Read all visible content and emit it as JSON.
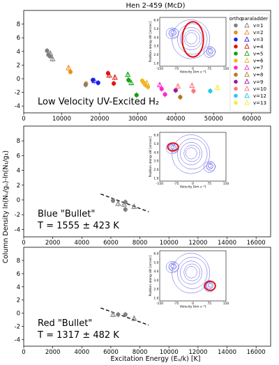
{
  "title": "Hen 2-459 (McD)",
  "ylabel": "Column Density   ln(Nᵤ/gᵤ)-ln(N₁/g₁)",
  "xlabel": "Excitation Energy     (Eᵤ/k)       [K]",
  "inset": {
    "xlabel": "Velocity [km s⁻¹]",
    "ylabel": "Position along slit [arcsec]",
    "xticks": [
      "-150",
      "-75",
      "0",
      "75",
      "150"
    ],
    "yticks": [
      "6.0",
      "5.0",
      "4.0",
      "3.0",
      "2.0",
      "1.0"
    ]
  },
  "legend": {
    "headers": [
      "ortho",
      "para",
      "ladder"
    ],
    "labels": [
      "v=1",
      "v=2",
      "v=3",
      "v=4",
      "v=5",
      "v=6",
      "v=7",
      "v=8",
      "v=9",
      "v=10",
      "v=12",
      "v=13"
    ],
    "colors": [
      "#808080",
      "#f08c1e",
      "#1e1ef0",
      "#e01414",
      "#14a014",
      "#f0b428",
      "#ff28c8",
      "#b4781e",
      "#a014a0",
      "#ff7878",
      "#28c8f0",
      "#f0f032"
    ]
  },
  "chart_data": [
    {
      "type": "scatter",
      "panel_label_lines": [
        "Low Velocity UV-Excited H₂"
      ],
      "xlim": [
        0,
        65000
      ],
      "ylim": [
        -5,
        10
      ],
      "xticks": [
        0,
        10000,
        20000,
        30000,
        40000,
        50000,
        60000
      ],
      "yticks": [
        -4,
        -2,
        0,
        2,
        4,
        6,
        8
      ],
      "inset_region": "center",
      "points": [
        {
          "v": 1,
          "t": "o",
          "x": 6150,
          "y": 4.1
        },
        {
          "v": 1,
          "t": "o",
          "x": 6500,
          "y": 3.5
        },
        {
          "v": 1,
          "t": "o",
          "x": 6900,
          "y": 3.3
        },
        {
          "v": 1,
          "t": "p",
          "x": 7000,
          "y": 3.7
        },
        {
          "v": 1,
          "t": "p",
          "x": 7600,
          "y": 2.9
        },
        {
          "v": 2,
          "t": "p",
          "x": 11800,
          "y": 1.6
        },
        {
          "v": 2,
          "t": "o",
          "x": 12300,
          "y": 1.0
        },
        {
          "v": 2,
          "t": "o",
          "x": 16400,
          "y": -0.7
        },
        {
          "v": 1,
          "t": "o",
          "x": 16300,
          "y": -0.9
        },
        {
          "v": 3,
          "t": "o",
          "x": 18200,
          "y": -0.2
        },
        {
          "v": 3,
          "t": "p",
          "x": 18600,
          "y": -0.3
        },
        {
          "v": 3,
          "t": "o",
          "x": 19600,
          "y": -0.6
        },
        {
          "v": 4,
          "t": "o",
          "x": 22200,
          "y": 0.8
        },
        {
          "v": 4,
          "t": "p",
          "x": 22500,
          "y": 0.5
        },
        {
          "v": 4,
          "t": "o",
          "x": 23700,
          "y": -0.7
        },
        {
          "v": 4,
          "t": "p",
          "x": 24000,
          "y": 0.2
        },
        {
          "v": 5,
          "t": "p",
          "x": 27400,
          "y": 0.6
        },
        {
          "v": 5,
          "t": "o",
          "x": 27600,
          "y": -0.2
        },
        {
          "v": 5,
          "t": "o",
          "x": 29700,
          "y": -2.4
        },
        {
          "v": 5,
          "t": "p",
          "x": 28300,
          "y": -0.6
        },
        {
          "v": 6,
          "t": "o",
          "x": 31200,
          "y": -0.3
        },
        {
          "v": 6,
          "t": "o",
          "x": 31600,
          "y": -0.6
        },
        {
          "v": 6,
          "t": "o",
          "x": 32000,
          "y": -0.9
        },
        {
          "v": 6,
          "t": "p",
          "x": 32400,
          "y": -0.6
        },
        {
          "v": 6,
          "t": "o",
          "x": 32700,
          "y": -1.2
        },
        {
          "v": 7,
          "t": "p",
          "x": 35800,
          "y": -0.9
        },
        {
          "v": 7,
          "t": "o",
          "x": 36300,
          "y": -1.5
        },
        {
          "v": 7,
          "t": "o",
          "x": 37200,
          "y": -2.3
        },
        {
          "v": 8,
          "t": "o",
          "x": 41200,
          "y": -2.7
        },
        {
          "v": 9,
          "t": "o",
          "x": 40000,
          "y": -1.7
        },
        {
          "v": 10,
          "t": "p",
          "x": 40600,
          "y": -1.1
        },
        {
          "v": 10,
          "t": "o",
          "x": 44700,
          "y": -1.8
        },
        {
          "v": 10,
          "t": "p",
          "x": 44300,
          "y": -1.0
        },
        {
          "v": 12,
          "t": "o",
          "x": 49100,
          "y": -1.8
        },
        {
          "v": 13,
          "t": "p",
          "x": 51000,
          "y": -1.3
        }
      ]
    },
    {
      "type": "scatter",
      "panel_label_lines": [
        "Blue \"Bullet\"",
        "T = 1555 ± 423 K"
      ],
      "xlim": [
        0,
        17000
      ],
      "ylim": [
        -5,
        10
      ],
      "xticks": [
        0,
        2000,
        4000,
        6000,
        8000,
        10000,
        12000,
        14000,
        16000
      ],
      "yticks": [
        -4,
        -2,
        0,
        2,
        4,
        6,
        8
      ],
      "inset_region": "left",
      "fit_line": {
        "x": [
          5300,
          8600
        ],
        "y": [
          0.8,
          -1.6
        ]
      },
      "points": [
        {
          "v": 1,
          "t": "o",
          "x": 6150,
          "y": -0.1
        },
        {
          "v": 1,
          "t": "p",
          "x": 6500,
          "y": -0.5
        },
        {
          "v": 1,
          "t": "p",
          "x": 6900,
          "y": -0.6
        },
        {
          "v": 1,
          "t": "o",
          "x": 7000,
          "y": -0.3
        },
        {
          "v": 1,
          "t": "o",
          "x": 7000,
          "y": -1.3
        },
        {
          "v": 1,
          "t": "p",
          "x": 7600,
          "y": -0.9
        }
      ]
    },
    {
      "type": "scatter",
      "panel_label_lines": [
        "Red \"Bullet\"",
        "T = 1317 ± 482 K"
      ],
      "xlim": [
        0,
        17000
      ],
      "ylim": [
        -5,
        10
      ],
      "xticks": [
        0,
        2000,
        4000,
        6000,
        8000,
        10000,
        12000,
        14000,
        16000
      ],
      "yticks": [
        -4,
        -2,
        0,
        2,
        4,
        6,
        8
      ],
      "inset_region": "right",
      "fit_line": {
        "x": [
          5300,
          8600
        ],
        "y": [
          0.8,
          -1.8
        ]
      },
      "points": [
        {
          "v": 1,
          "t": "p",
          "x": 6150,
          "y": -0.2
        },
        {
          "v": 1,
          "t": "o",
          "x": 6500,
          "y": -0.2
        },
        {
          "v": 1,
          "t": "o",
          "x": 7000,
          "y": -0.2
        },
        {
          "v": 1,
          "t": "p",
          "x": 7600,
          "y": -0.8
        }
      ]
    }
  ]
}
